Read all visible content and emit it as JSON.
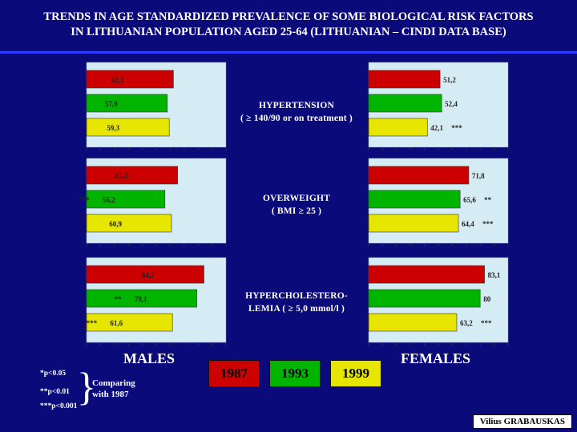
{
  "title": {
    "line1": "TRENDS IN AGE STANDARDIZED PREVALENCE OF SOME BIOLOGICAL RISK FACTORS",
    "line2": "IN LITHUANIAN POPULATION AGED 25-64 (LITHUANIAN – CINDI DATA BASE)"
  },
  "labels": {
    "males": "MALES",
    "females": "FEMALES",
    "comparing_line1": "Comparing",
    "comparing_line2": "with 1987",
    "author": "Vilius GRABAUSKAS"
  },
  "significance_notes": [
    "*p<0.05",
    "**p<0.01",
    "***p<0.001"
  ],
  "legend": [
    {
      "name": "1987",
      "color": "#cc0000",
      "text_color": "#000000"
    },
    {
      "name": "1993",
      "color": "#00b400",
      "text_color": "#000000"
    },
    {
      "name": "1999",
      "color": "#e6e600",
      "text_color": "#000000"
    }
  ],
  "colors": {
    "background": "#0a0a7a",
    "panel": "#d6ecf4",
    "bar_1987": "#cc0000",
    "bar_1993": "#00b400",
    "bar_1999": "#e6e600"
  },
  "chart_data": [
    {
      "type": "bar",
      "orientation": "horizontal",
      "panel_label_line1": "HYPERTENSION",
      "panel_label_line2": "( ≥ 140/90 or on treatment )",
      "series": [
        "1987",
        "1993",
        "1999"
      ],
      "males": {
        "values": [
          62.3,
          57.9,
          59.3
        ],
        "labels": [
          "62,3",
          "57,9",
          "59,3"
        ],
        "sig": [
          "",
          "",
          ""
        ]
      },
      "females": {
        "values": [
          51.2,
          52.4,
          42.1
        ],
        "labels": [
          "51,2",
          "52,4",
          "42,1"
        ],
        "sig": [
          "",
          "",
          "***"
        ]
      }
    },
    {
      "type": "bar",
      "orientation": "horizontal",
      "panel_label_line1": "OVERWEIGHT",
      "panel_label_line2": "( BMI ≥ 25 )",
      "series": [
        "1987",
        "1993",
        "1999"
      ],
      "males": {
        "values": [
          65.3,
          56.2,
          60.9
        ],
        "labels": [
          "65,3",
          "56,2",
          "60,9"
        ],
        "sig": [
          "",
          "***",
          ""
        ]
      },
      "females": {
        "values": [
          71.8,
          65.6,
          64.4
        ],
        "labels": [
          "71,8",
          "65,6",
          "64,4"
        ],
        "sig": [
          "",
          "**",
          "***"
        ]
      }
    },
    {
      "type": "bar",
      "orientation": "horizontal",
      "panel_label_line1": "HYPERCHOLESTERO-",
      "panel_label_line2": "LEMIA ( ≥ 5,0 mmol/l )",
      "series": [
        "1987",
        "1993",
        "1999"
      ],
      "males": {
        "values": [
          84.2,
          79.1,
          61.6
        ],
        "labels": [
          "84,2",
          "79,1",
          "61,6"
        ],
        "sig": [
          "",
          "**",
          "***"
        ]
      },
      "females": {
        "values": [
          83.1,
          80.0,
          63.2
        ],
        "labels": [
          "83,1",
          "80",
          "63,2"
        ],
        "sig": [
          "",
          "",
          "***"
        ]
      }
    }
  ]
}
